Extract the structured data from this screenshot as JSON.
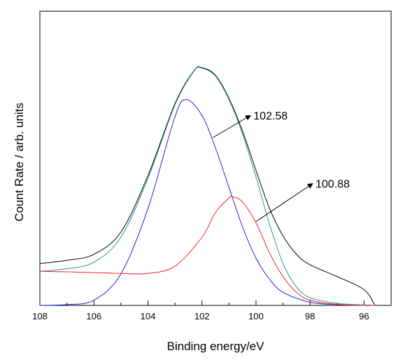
{
  "chart_data": {
    "type": "line",
    "title": "",
    "xlabel": "Binding energy/eV",
    "ylabel": "Count Rate / arb. units",
    "xlim": [
      108,
      95
    ],
    "x_reversed": true,
    "ylim": [
      0,
      1
    ],
    "y_ticks_shown": false,
    "xticks": [
      108,
      106,
      104,
      102,
      100,
      98,
      96
    ],
    "grid": false,
    "legend": "none",
    "series": [
      {
        "color": "#000000",
        "points": [
          [
            108,
            0.16
          ],
          [
            107,
            0.172
          ],
          [
            106,
            0.195
          ],
          [
            105,
            0.28
          ],
          [
            104,
            0.495
          ],
          [
            103,
            0.77
          ],
          [
            102.3,
            0.895
          ],
          [
            102,
            0.907
          ],
          [
            101.5,
            0.878
          ],
          [
            101,
            0.79
          ],
          [
            100.5,
            0.665
          ],
          [
            100,
            0.515
          ],
          [
            99.5,
            0.37
          ],
          [
            99,
            0.265
          ],
          [
            98.5,
            0.195
          ],
          [
            98,
            0.155
          ],
          [
            97,
            0.11
          ],
          [
            96,
            0.06
          ],
          [
            95.6,
            0.0
          ]
        ]
      },
      {
        "color": "#1a9e8f",
        "points": [
          [
            108,
            0.13
          ],
          [
            107,
            0.14
          ],
          [
            106,
            0.165
          ],
          [
            105,
            0.26
          ],
          [
            104,
            0.485
          ],
          [
            103,
            0.765
          ],
          [
            102.3,
            0.893
          ],
          [
            102,
            0.905
          ],
          [
            101.5,
            0.875
          ],
          [
            101,
            0.785
          ],
          [
            100.5,
            0.655
          ],
          [
            100,
            0.49
          ],
          [
            99.5,
            0.31
          ],
          [
            99,
            0.16
          ],
          [
            98.5,
            0.07
          ],
          [
            98,
            0.03
          ],
          [
            97,
            0.008
          ],
          [
            96,
            0.002
          ],
          [
            95.6,
            0.0
          ]
        ]
      },
      {
        "color": "#2020dd",
        "points": [
          [
            108,
            0.0
          ],
          [
            107,
            0.003
          ],
          [
            106,
            0.02
          ],
          [
            105,
            0.12
          ],
          [
            104,
            0.37
          ],
          [
            103,
            0.72
          ],
          [
            102.58,
            0.785
          ],
          [
            102,
            0.725
          ],
          [
            101.5,
            0.6
          ],
          [
            101,
            0.45
          ],
          [
            100.5,
            0.3
          ],
          [
            100,
            0.18
          ],
          [
            99.5,
            0.1
          ],
          [
            99,
            0.05
          ],
          [
            98,
            0.012
          ],
          [
            97,
            0.003
          ],
          [
            96,
            0.0
          ],
          [
            95.6,
            0.0
          ]
        ]
      },
      {
        "color": "#ff2020",
        "points": [
          [
            108,
            0.13
          ],
          [
            107,
            0.128
          ],
          [
            106,
            0.125
          ],
          [
            105,
            0.122
          ],
          [
            104,
            0.122
          ],
          [
            103,
            0.15
          ],
          [
            102,
            0.26
          ],
          [
            101.5,
            0.355
          ],
          [
            101,
            0.41
          ],
          [
            100.88,
            0.415
          ],
          [
            100.5,
            0.395
          ],
          [
            100,
            0.315
          ],
          [
            99.5,
            0.2
          ],
          [
            99,
            0.11
          ],
          [
            98.5,
            0.05
          ],
          [
            98,
            0.02
          ],
          [
            97,
            0.004
          ],
          [
            96,
            0.0
          ],
          [
            95.6,
            0.0
          ]
        ]
      }
    ],
    "annotations": [
      {
        "text": "102.58",
        "arrow_from": [
          101.6,
          0.64
        ],
        "arrow_to": [
          100.2,
          0.725
        ]
      },
      {
        "text": "100.88",
        "arrow_from": [
          100.0,
          0.32
        ],
        "arrow_to": [
          97.9,
          0.465
        ]
      }
    ]
  }
}
